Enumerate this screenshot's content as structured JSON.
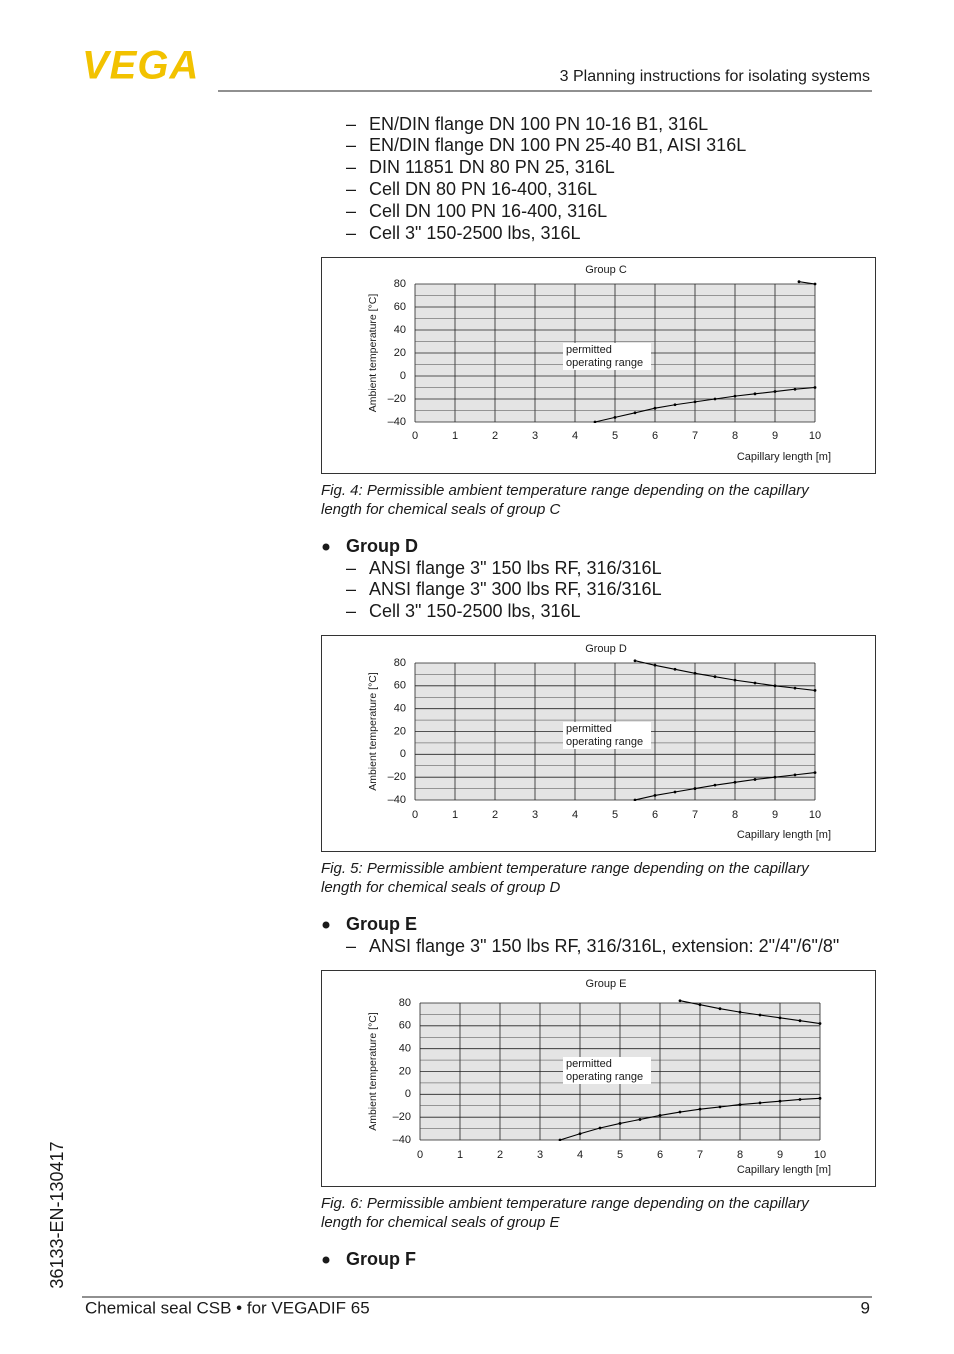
{
  "header": {
    "logo": "VEGA",
    "section": "3 Planning instructions for isolating systems"
  },
  "intro_list": [
    "EN/DIN flange DN 100 PN 10-16 B1, 316L",
    "EN/DIN flange DN 100 PN 25-40 B1, AISI 316L",
    "DIN 11851 DN 80 PN 25, 316L",
    "Cell DN 80 PN 16-400, 316L",
    "Cell DN 100 PN 16-400, 316L",
    "Cell 3\" 150-2500 lbs, 316L"
  ],
  "list_dash": "–",
  "chart_data": [
    {
      "type": "line",
      "title": "Group C",
      "y_label": "Ambient temperature [°C]",
      "x_label": "Capillary length [m]",
      "annotations": [
        "permitted",
        "operating range"
      ],
      "xlim": [
        0,
        10
      ],
      "ylim": [
        -40,
        80
      ],
      "xticks": [
        0,
        1,
        2,
        3,
        4,
        5,
        6,
        7,
        8,
        9,
        10
      ],
      "yticks": [
        80,
        60,
        40,
        20,
        0,
        {
          "value": -20,
          "label": "–20"
        },
        {
          "value": -40,
          "label": "–40"
        }
      ],
      "grid": true,
      "background": "#e4e4e4",
      "series": [
        {
          "color": "#000000",
          "x": [
            9.6,
            10
          ],
          "values": [
            82,
            80
          ]
        },
        {
          "color": "#000000",
          "x": [
            4.5,
            5,
            5.5,
            6,
            6.5,
            7,
            7.5,
            8,
            8.5,
            9,
            9.5,
            10
          ],
          "values": [
            -40,
            -36,
            -32,
            -28,
            -25,
            -22.5,
            -20,
            -17.5,
            -15.5,
            -13.5,
            -11.5,
            -10
          ]
        }
      ]
    },
    {
      "type": "line",
      "title": "Group D",
      "y_label": "Ambient temperature [°C]",
      "x_label": "Capillary length [m]",
      "annotations": [
        "permitted",
        "operating range"
      ],
      "xlim": [
        0,
        10
      ],
      "ylim": [
        -40,
        80
      ],
      "xticks": [
        0,
        1,
        2,
        3,
        4,
        5,
        6,
        7,
        8,
        9,
        10
      ],
      "yticks": [
        80,
        60,
        40,
        20,
        0,
        {
          "value": -20,
          "label": "–20"
        },
        {
          "value": -40,
          "label": "–40"
        }
      ],
      "grid": true,
      "background": "#e4e4e4",
      "series": [
        {
          "color": "#000000",
          "x": [
            5.5,
            6,
            6.5,
            7,
            7.5,
            8,
            8.5,
            9,
            9.5,
            10
          ],
          "values": [
            82,
            78,
            74.5,
            71,
            68,
            65,
            62.5,
            60,
            58,
            56
          ]
        },
        {
          "color": "#000000",
          "x": [
            5.5,
            6,
            6.5,
            7,
            7.5,
            8,
            8.5,
            9,
            9.5,
            10
          ],
          "values": [
            -40,
            -36,
            -33,
            -30,
            -27,
            -24.5,
            -22,
            -20,
            -18,
            -16
          ]
        }
      ]
    },
    {
      "type": "line",
      "title": "Group E",
      "y_label": "Ambient temperature [°C]",
      "x_label": "Capillary length [m]",
      "annotations": [
        "permitted",
        "operating range"
      ],
      "xlim": [
        0,
        10
      ],
      "ylim": [
        -40,
        80
      ],
      "xticks": [
        0,
        1,
        2,
        3,
        4,
        5,
        6,
        7,
        8,
        9,
        10
      ],
      "yticks": [
        80,
        60,
        40,
        20,
        0,
        {
          "value": -20,
          "label": "–20"
        },
        {
          "value": -40,
          "label": "–40"
        }
      ],
      "grid": true,
      "background": "#e4e4e4",
      "series": [
        {
          "color": "#000000",
          "x": [
            6.5,
            7,
            7.5,
            8,
            8.5,
            9,
            9.5,
            10
          ],
          "values": [
            82,
            78.5,
            75,
            72,
            69.5,
            67,
            64.5,
            62
          ]
        },
        {
          "color": "#000000",
          "x": [
            3.5,
            4,
            4.5,
            5,
            5.5,
            6,
            6.5,
            7,
            7.5,
            8,
            8.5,
            9,
            9.5,
            10
          ],
          "values": [
            -40,
            -34.5,
            -29.5,
            -25.5,
            -22,
            -18.5,
            -15.5,
            -13,
            -11,
            -9,
            -7.5,
            -6,
            -4.5,
            -3.5
          ]
        }
      ]
    }
  ],
  "captions": [
    [
      "Fig. 4: Permissible ambient temperature range depending on the capillary",
      "length for chemical seals of group C"
    ],
    [
      "Fig. 5: Permissible ambient temperature range depending on the capillary",
      "length for chemical seals of group D"
    ],
    [
      "Fig. 6: Permissible ambient temperature range depending on the capillary",
      "length for chemical seals of group E"
    ]
  ],
  "groups": [
    {
      "label": "Group D",
      "items": [
        "ANSI flange 3\" 150 lbs RF, 316/316L",
        "ANSI flange 3\" 300 lbs RF, 316/316L",
        "Cell 3\" 150-2500 lbs, 316L"
      ]
    },
    {
      "label": "Group E",
      "items": [
        "ANSI flange 3\" 150 lbs RF, 316/316L, extension: 2\"/4\"/6\"/8\""
      ]
    },
    {
      "label": "Group F",
      "items": []
    }
  ],
  "footer": {
    "doc_title": "Chemical seal CSB • for VEGADIF 65",
    "page": "9",
    "doc_id": "36133-EN-130417"
  }
}
